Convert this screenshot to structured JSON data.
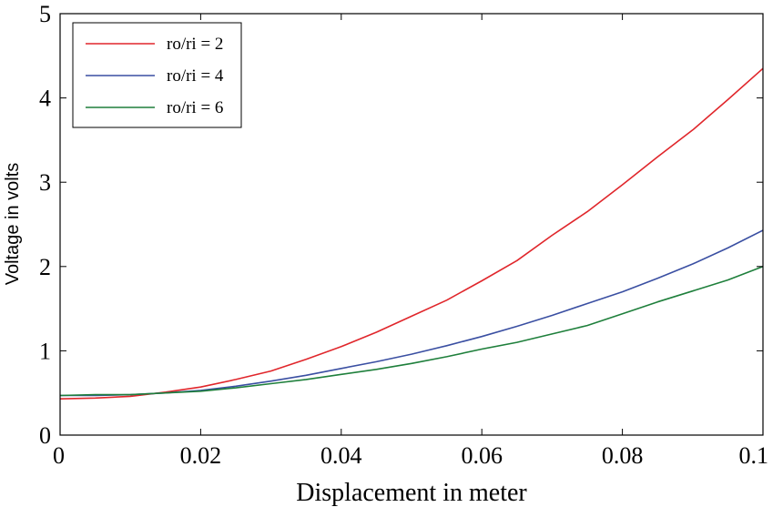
{
  "chart_data": {
    "type": "line",
    "title": "",
    "xlabel": "Displacement in meter",
    "ylabel": "Voltage in volts",
    "xlim": [
      0,
      0.1
    ],
    "ylim": [
      0,
      5
    ],
    "x_ticks": [
      0,
      0.02,
      0.04,
      0.06,
      0.08,
      0.1
    ],
    "x_tick_labels": [
      "0",
      "0.02",
      "0.04",
      "0.06",
      "0.08",
      "0.1"
    ],
    "y_ticks": [
      0,
      1,
      2,
      3,
      4,
      5
    ],
    "y_tick_labels": [
      "0",
      "1",
      "2",
      "3",
      "4",
      "5"
    ],
    "grid": false,
    "legend_position": "top-left",
    "series": [
      {
        "name": "ro/ri = 2",
        "color": "#e0262b",
        "x": [
          0,
          0.005,
          0.01,
          0.015,
          0.02,
          0.025,
          0.03,
          0.035,
          0.04,
          0.045,
          0.05,
          0.055,
          0.06,
          0.065,
          0.07,
          0.075,
          0.08,
          0.085,
          0.09,
          0.095,
          0.1
        ],
        "y": [
          0.43,
          0.44,
          0.46,
          0.51,
          0.57,
          0.66,
          0.76,
          0.9,
          1.05,
          1.22,
          1.41,
          1.6,
          1.83,
          2.07,
          2.37,
          2.65,
          2.97,
          3.3,
          3.62,
          3.98,
          4.35
        ]
      },
      {
        "name": "ro/ri = 4",
        "color": "#3a4fa2",
        "x": [
          0,
          0.005,
          0.01,
          0.015,
          0.02,
          0.025,
          0.03,
          0.035,
          0.04,
          0.045,
          0.05,
          0.055,
          0.06,
          0.065,
          0.07,
          0.075,
          0.08,
          0.085,
          0.09,
          0.095,
          0.1
        ],
        "y": [
          0.47,
          0.47,
          0.48,
          0.5,
          0.53,
          0.58,
          0.64,
          0.71,
          0.79,
          0.87,
          0.96,
          1.06,
          1.17,
          1.29,
          1.42,
          1.56,
          1.7,
          1.86,
          2.03,
          2.22,
          2.43
        ]
      },
      {
        "name": "ro/ri = 6",
        "color": "#1e7f3b",
        "x": [
          0,
          0.005,
          0.01,
          0.015,
          0.02,
          0.025,
          0.03,
          0.035,
          0.04,
          0.045,
          0.05,
          0.055,
          0.06,
          0.065,
          0.07,
          0.075,
          0.08,
          0.085,
          0.09,
          0.095,
          0.1
        ],
        "y": [
          0.47,
          0.48,
          0.48,
          0.5,
          0.52,
          0.56,
          0.61,
          0.66,
          0.72,
          0.78,
          0.85,
          0.93,
          1.02,
          1.1,
          1.2,
          1.3,
          1.44,
          1.58,
          1.71,
          1.84,
          2.0
        ]
      }
    ]
  }
}
